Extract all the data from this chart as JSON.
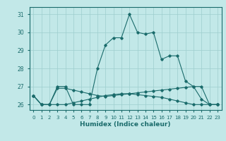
{
  "xlabel": "Humidex (Indice chaleur)",
  "xlim": [
    -0.5,
    23.5
  ],
  "ylim": [
    25.7,
    31.4
  ],
  "yticks": [
    26,
    27,
    28,
    29,
    30,
    31
  ],
  "xtick_labels": [
    "0",
    "1",
    "2",
    "3",
    "4",
    "5",
    "6",
    "7",
    "8",
    "9",
    "10",
    "11",
    "12",
    "13",
    "14",
    "15",
    "16",
    "17",
    "18",
    "19",
    "20",
    "21",
    "22",
    "23"
  ],
  "background_color": "#c2e8e8",
  "grid_color": "#9dcece",
  "line_color": "#1a6b6b",
  "line1": [
    26.5,
    26.0,
    26.0,
    27.0,
    27.0,
    26.0,
    26.0,
    26.0,
    28.0,
    29.3,
    29.7,
    29.7,
    31.0,
    30.0,
    29.9,
    30.0,
    28.5,
    28.7,
    28.7,
    27.3,
    27.0,
    26.3,
    26.0,
    26.0
  ],
  "line2": [
    26.5,
    26.0,
    26.0,
    26.9,
    26.9,
    26.8,
    26.7,
    26.6,
    26.5,
    26.45,
    26.5,
    26.55,
    26.6,
    26.65,
    26.7,
    26.75,
    26.8,
    26.85,
    26.9,
    26.95,
    27.0,
    27.0,
    26.0,
    26.0
  ],
  "line3": [
    26.5,
    26.0,
    26.0,
    26.0,
    26.0,
    26.1,
    26.2,
    26.3,
    26.4,
    26.5,
    26.55,
    26.6,
    26.6,
    26.55,
    26.5,
    26.45,
    26.4,
    26.3,
    26.2,
    26.1,
    26.0,
    26.0,
    26.0,
    26.0
  ]
}
